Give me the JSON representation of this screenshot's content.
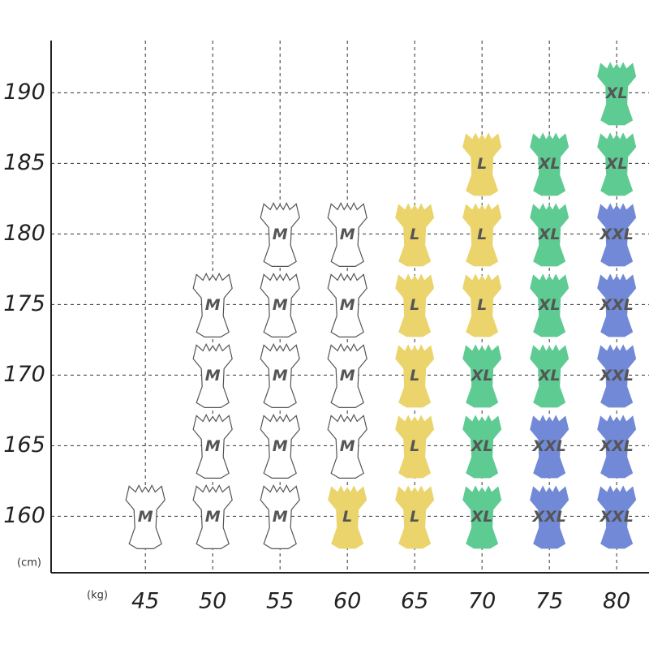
{
  "chart_data": {
    "type": "sizegrid",
    "x_label": "(kg)",
    "y_label": "(cm)",
    "xlim": [
      38,
      82.4
    ],
    "ylim": [
      156,
      193.7
    ],
    "xticks": [
      45,
      50,
      55,
      60,
      65,
      70,
      75,
      80
    ],
    "yticks": [
      160,
      165,
      170,
      175,
      180,
      185,
      190
    ],
    "grid": true,
    "series": [
      {
        "name": "M",
        "color": "#ffffff",
        "x": [
          45,
          50,
          50,
          50,
          50,
          55,
          55,
          55,
          55,
          55,
          60,
          60,
          60,
          60
        ],
        "values": [
          160,
          160,
          165,
          170,
          175,
          160,
          165,
          170,
          175,
          180,
          165,
          170,
          175,
          180
        ]
      },
      {
        "name": "L",
        "color": "#ead46b",
        "x": [
          60,
          65,
          65,
          65,
          65,
          65,
          70,
          70,
          70
        ],
        "values": [
          160,
          160,
          165,
          170,
          175,
          180,
          175,
          180,
          185
        ]
      },
      {
        "name": "XL",
        "color": "#5ecb92",
        "x": [
          70,
          70,
          70,
          75,
          75,
          75,
          75,
          80,
          80
        ],
        "values": [
          160,
          165,
          170,
          170,
          175,
          180,
          185,
          185,
          190
        ]
      },
      {
        "name": "XXL",
        "color": "#7189d6",
        "x": [
          75,
          75,
          80,
          80,
          80,
          80,
          80
        ],
        "values": [
          160,
          165,
          160,
          165,
          170,
          175,
          180
        ]
      }
    ]
  }
}
